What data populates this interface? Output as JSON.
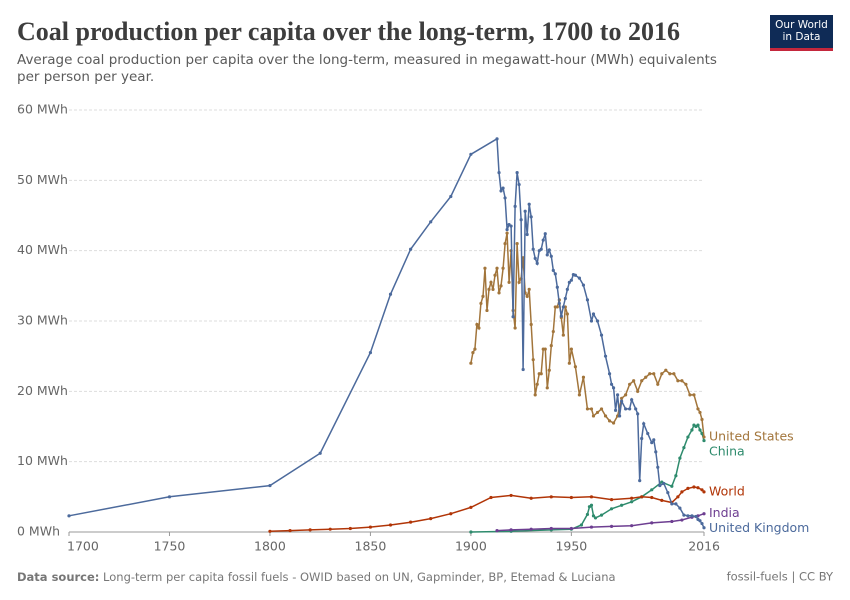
{
  "chart_data": {
    "type": "line",
    "title": "Coal production per capita over the long-term, 1700 to 2016",
    "subtitle": "Average coal production per capita over the long-term, measured in megawatt-hour (MWh) equivalents per person per year.",
    "logo": "Our World in Data",
    "source_label": "Data source:",
    "source": "Long-term per capita fossil fuels - OWID based on UN, Gapminder, BP, Etemad & Luciana",
    "footer_right": "fossil-fuels | CC BY",
    "xlim": [
      1700,
      2016
    ],
    "xticks": [
      1700,
      1750,
      1800,
      1850,
      1900,
      1950,
      2016
    ],
    "ylim": [
      0,
      60
    ],
    "yticks": [
      {
        "value": 0,
        "label": "0 MWh"
      },
      {
        "value": 10,
        "label": "10 MWh"
      },
      {
        "value": 20,
        "label": "20 MWh"
      },
      {
        "value": 30,
        "label": "30 MWh"
      },
      {
        "value": 40,
        "label": "40 MWh"
      },
      {
        "value": 50,
        "label": "50 MWh"
      },
      {
        "value": 60,
        "label": "60 MWh"
      }
    ],
    "grid": true,
    "series": [
      {
        "name": "China",
        "color": "#2e8b6d",
        "x": [
          1900,
          1920,
          1940,
          1950,
          1955,
          1958,
          1959,
          1960,
          1961,
          1962,
          1965,
          1970,
          1975,
          1980,
          1985,
          1990,
          1995,
          2000,
          2002,
          2004,
          2006,
          2008,
          2010,
          2011,
          2012,
          2013,
          2014,
          2015,
          2016
        ],
        "values": [
          0.0,
          0.1,
          0.3,
          0.4,
          1.0,
          2.5,
          3.6,
          3.8,
          2.3,
          2.0,
          2.4,
          3.3,
          3.8,
          4.3,
          5.0,
          6.0,
          7.1,
          6.5,
          8.0,
          10.5,
          12.0,
          13.5,
          14.5,
          15.2,
          15.0,
          15.2,
          14.5,
          14.0,
          13.0
        ]
      },
      {
        "name": "United States",
        "color": "#a2753b",
        "x": [
          1900,
          1901,
          1902,
          1903,
          1904,
          1905,
          1906,
          1907,
          1908,
          1909,
          1910,
          1911,
          1912,
          1913,
          1914,
          1915,
          1916,
          1917,
          1918,
          1919,
          1920,
          1921,
          1922,
          1923,
          1924,
          1925,
          1926,
          1927,
          1928,
          1929,
          1930,
          1931,
          1932,
          1933,
          1934,
          1935,
          1936,
          1937,
          1938,
          1939,
          1940,
          1941,
          1942,
          1943,
          1944,
          1945,
          1946,
          1947,
          1948,
          1949,
          1950,
          1952,
          1954,
          1956,
          1958,
          1960,
          1961,
          1963,
          1965,
          1967,
          1969,
          1971,
          1973,
          1975,
          1977,
          1979,
          1981,
          1983,
          1985,
          1987,
          1989,
          1991,
          1993,
          1995,
          1997,
          1999,
          2001,
          2003,
          2005,
          2007,
          2009,
          2011,
          2013,
          2014,
          2015,
          2016
        ],
        "values": [
          24.0,
          25.5,
          26.0,
          29.5,
          29.0,
          32.5,
          33.5,
          37.5,
          31.5,
          34.5,
          35.5,
          34.5,
          36.5,
          37.5,
          34.0,
          35.0,
          37.5,
          41.0,
          42.5,
          35.5,
          40.0,
          31.5,
          29.0,
          41.0,
          35.5,
          36.0,
          39.0,
          34.0,
          33.5,
          34.5,
          29.5,
          24.5,
          19.5,
          21.0,
          22.5,
          22.5,
          26.0,
          26.0,
          20.5,
          23.0,
          26.5,
          28.5,
          32.0,
          32.0,
          33.0,
          30.5,
          28.0,
          32.0,
          31.0,
          24.0,
          26.0,
          23.5,
          19.5,
          22.0,
          17.5,
          17.5,
          16.5,
          17.0,
          17.5,
          16.5,
          15.8,
          15.5,
          16.5,
          19.0,
          19.5,
          21.0,
          21.5,
          20.0,
          21.5,
          22.0,
          22.5,
          22.5,
          21.0,
          22.5,
          23.0,
          22.5,
          22.5,
          21.5,
          21.5,
          21.0,
          19.5,
          19.5,
          17.5,
          17.0,
          16.0,
          13.5
        ]
      },
      {
        "name": "World",
        "color": "#b13507",
        "x": [
          1800,
          1810,
          1820,
          1830,
          1840,
          1850,
          1860,
          1870,
          1880,
          1890,
          1900,
          1910,
          1920,
          1930,
          1940,
          1950,
          1960,
          1970,
          1980,
          1985,
          1990,
          1995,
          2000,
          2003,
          2005,
          2008,
          2011,
          2013,
          2015,
          2016
        ],
        "values": [
          0.1,
          0.2,
          0.3,
          0.4,
          0.5,
          0.7,
          1.0,
          1.4,
          1.9,
          2.6,
          3.5,
          4.9,
          5.2,
          4.8,
          5.0,
          4.9,
          5.0,
          4.6,
          4.8,
          5.0,
          4.9,
          4.5,
          4.2,
          5.0,
          5.7,
          6.2,
          6.4,
          6.3,
          6.0,
          5.7
        ]
      },
      {
        "name": "India",
        "color": "#6d3e91",
        "x": [
          1913,
          1920,
          1930,
          1940,
          1950,
          1960,
          1970,
          1980,
          1990,
          2000,
          2005,
          2010,
          2013,
          2016
        ],
        "values": [
          0.2,
          0.3,
          0.4,
          0.5,
          0.5,
          0.7,
          0.8,
          0.9,
          1.3,
          1.5,
          1.7,
          2.1,
          2.3,
          2.6
        ]
      },
      {
        "name": "United Kingdom",
        "color": "#4c6a9c",
        "x": [
          1700,
          1750,
          1800,
          1825,
          1850,
          1860,
          1870,
          1880,
          1890,
          1900,
          1913,
          1914,
          1915,
          1916,
          1917,
          1918,
          1919,
          1920,
          1921,
          1922,
          1923,
          1924,
          1925,
          1926,
          1927,
          1928,
          1929,
          1930,
          1931,
          1932,
          1933,
          1934,
          1935,
          1936,
          1937,
          1938,
          1939,
          1940,
          1941,
          1942,
          1943,
          1944,
          1945,
          1946,
          1947,
          1948,
          1949,
          1950,
          1951,
          1952,
          1954,
          1956,
          1958,
          1960,
          1961,
          1963,
          1965,
          1967,
          1969,
          1970,
          1971,
          1972,
          1973,
          1974,
          1975,
          1977,
          1979,
          1980,
          1982,
          1983,
          1984,
          1985,
          1986,
          1988,
          1990,
          1991,
          1992,
          1993,
          1994,
          1996,
          1998,
          2000,
          2002,
          2004,
          2006,
          2008,
          2010,
          2012,
          2013,
          2014,
          2015,
          2016
        ],
        "values": [
          2.3,
          5.0,
          6.6,
          11.2,
          25.5,
          33.8,
          40.2,
          44.1,
          47.7,
          53.7,
          55.9,
          51.1,
          48.5,
          48.9,
          47.5,
          43.0,
          43.7,
          43.5,
          30.6,
          46.3,
          51.1,
          49.4,
          44.4,
          23.1,
          45.6,
          42.3,
          46.6,
          44.8,
          40.2,
          38.9,
          38.2,
          40.0,
          40.2,
          41.5,
          42.4,
          39.4,
          40.1,
          39.2,
          37.2,
          36.7,
          34.8,
          32.5,
          30.7,
          32.0,
          33.2,
          34.5,
          35.5,
          35.8,
          36.6,
          36.5,
          36.1,
          35.1,
          33.0,
          30.0,
          31.0,
          30.0,
          28.0,
          25.0,
          22.5,
          21.0,
          20.5,
          17.3,
          19.5,
          16.5,
          18.6,
          17.5,
          17.5,
          18.8,
          17.5,
          16.8,
          7.3,
          13.3,
          15.4,
          14.0,
          12.7,
          13.1,
          11.4,
          9.2,
          6.6,
          6.9,
          5.6,
          4.0,
          4.0,
          3.4,
          2.4,
          2.3,
          2.3,
          2.2,
          1.8,
          1.6,
          1.2,
          0.6
        ]
      }
    ]
  }
}
